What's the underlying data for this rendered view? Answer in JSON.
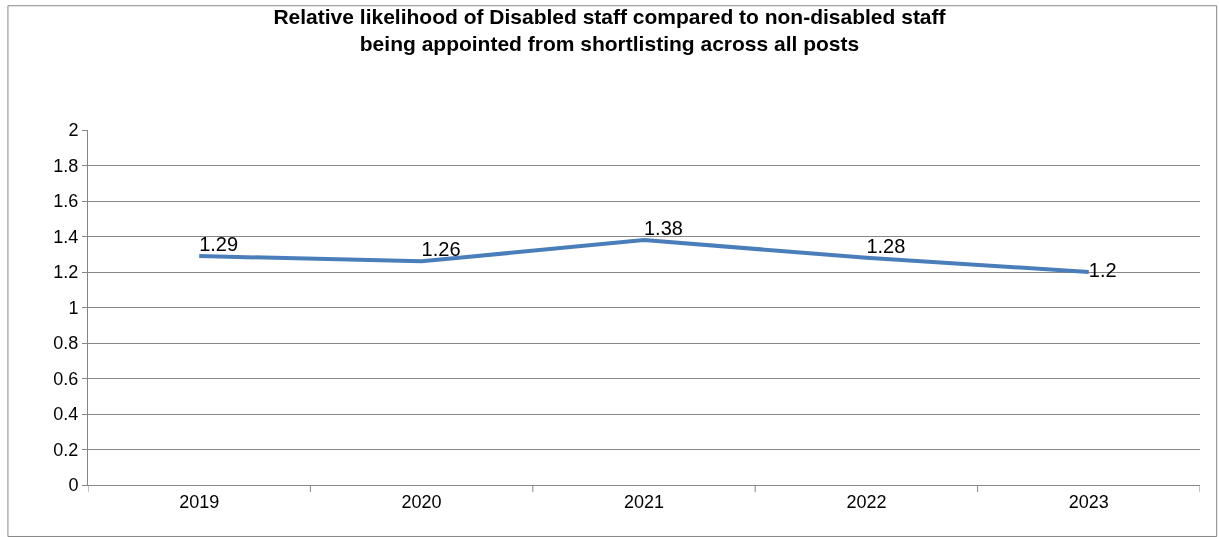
{
  "chart_data": {
    "type": "line",
    "title": "Relative likelihood of Disabled staff compared to non-disabled staff\nbeing appointed from shortlisting across all posts",
    "categories": [
      "2019",
      "2020",
      "2021",
      "2022",
      "2023"
    ],
    "values": [
      1.29,
      1.26,
      1.38,
      1.28,
      1.2
    ],
    "color": "#4a7ebb",
    "ylim": [
      0,
      2
    ],
    "yticks": [
      0,
      0.2,
      0.4,
      0.6,
      0.8,
      1,
      1.2,
      1.4,
      1.6,
      1.8,
      2
    ],
    "grid": "y",
    "data_labels": true
  }
}
